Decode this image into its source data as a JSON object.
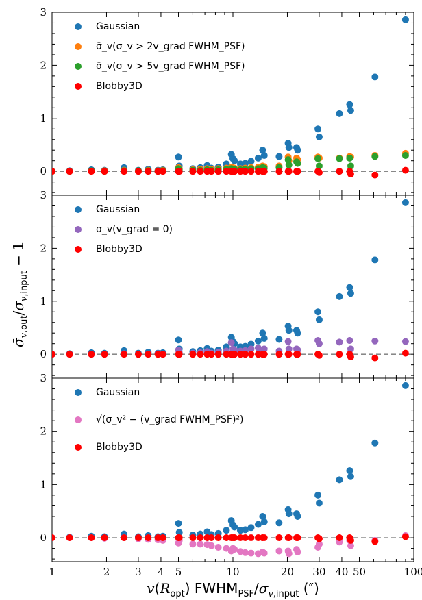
{
  "chart_data": {
    "type": "scatter",
    "xlabel": "v(R_opt) FWHM_PSF/σ_v,input (″)",
    "ylabel": "σ̄_v,out/σ_v,input − 1",
    "xscale": "log",
    "xlim": [
      1,
      100
    ],
    "ylim": [
      -0.45,
      3.0
    ],
    "x_ticks": [
      1,
      2,
      3,
      4,
      5,
      10,
      20,
      30,
      40,
      50,
      100
    ],
    "x_tick_labels": [
      "1",
      "2",
      "3",
      "4",
      "5",
      "10",
      "20",
      "30",
      "40",
      "50",
      "100"
    ],
    "y_ticks": [
      0,
      1,
      2,
      3
    ],
    "y_tick_labels": [
      "0",
      "1",
      "2",
      "3"
    ],
    "colors": {
      "gaussian": "#1f77b4",
      "orange": "#ff7f0e",
      "green": "#2ca02c",
      "purple": "#9467bd",
      "pink": "#e377c2",
      "blobby": "#ff0000",
      "zero_line": "#777777"
    },
    "x_points": [
      1.0,
      1.25,
      1.65,
      1.95,
      2.5,
      3.0,
      3.4,
      3.85,
      4.1,
      5.0,
      5.05,
      6.0,
      6.6,
      7.2,
      7.6,
      8.3,
      9.2,
      9.8,
      10.0,
      10.2,
      11.0,
      11.7,
      12.6,
      13.8,
      14.6,
      14.9,
      18.0,
      20.2,
      20.4,
      22.5,
      22.8,
      29.5,
      30.0,
      38.8,
      44.2,
      44.8,
      61.0,
      90.0
    ],
    "gaussian_y": [
      0.0,
      0.01,
      0.03,
      0.02,
      0.07,
      0.02,
      0.04,
      0.02,
      0.03,
      0.27,
      0.1,
      0.05,
      0.07,
      0.11,
      0.06,
      0.08,
      0.14,
      0.32,
      0.24,
      0.2,
      0.14,
      0.15,
      0.19,
      0.25,
      0.4,
      0.3,
      0.28,
      0.53,
      0.45,
      0.45,
      0.4,
      0.8,
      0.65,
      1.09,
      1.26,
      1.15,
      1.78,
      2.86
    ],
    "panels": [
      {
        "legend": [
          "Gaussian",
          "σ̄_v(σ_v > 2v_grad FWHM_PSF)",
          "σ̄_v(σ_v > 5v_grad FWHM_PSF)",
          "Blobby3D"
        ],
        "series": [
          {
            "name": "Gaussian",
            "color_key": "gaussian",
            "y_key": "gaussian_y"
          },
          {
            "name": "σ̄_v(σ_v > 2v_grad FWHM_PSF)",
            "color_key": "orange",
            "y": [
              0.0,
              0.0,
              0.01,
              0.01,
              0.02,
              0.01,
              0.02,
              0.01,
              0.02,
              0.07,
              0.05,
              0.03,
              0.04,
              0.05,
              0.04,
              0.05,
              0.06,
              0.08,
              0.07,
              0.06,
              0.05,
              0.06,
              0.07,
              0.08,
              0.1,
              0.09,
              0.1,
              0.27,
              0.2,
              0.25,
              0.22,
              0.27,
              0.25,
              0.25,
              0.28,
              0.27,
              0.3,
              0.34
            ]
          },
          {
            "name": "σ̄_v(σ_v > 5v_grad FWHM_PSF)",
            "color_key": "green",
            "y": [
              0.0,
              0.0,
              0.01,
              0.0,
              0.01,
              0.01,
              0.01,
              0.0,
              0.01,
              0.05,
              0.03,
              0.02,
              0.02,
              0.03,
              0.02,
              0.03,
              0.04,
              0.05,
              0.04,
              0.04,
              0.03,
              0.04,
              0.05,
              0.05,
              0.07,
              0.06,
              0.07,
              0.22,
              0.12,
              0.18,
              0.15,
              0.24,
              0.1,
              0.24,
              0.25,
              0.1,
              0.28,
              0.3
            ]
          },
          {
            "name": "Blobby3D",
            "color_key": "blobby",
            "y": [
              0.0,
              0.0,
              0.0,
              0.0,
              0.0,
              0.0,
              0.0,
              0.0,
              0.0,
              0.0,
              0.0,
              0.0,
              0.0,
              0.0,
              0.0,
              0.0,
              0.0,
              0.0,
              0.0,
              0.0,
              0.0,
              0.0,
              0.0,
              0.0,
              0.0,
              0.0,
              0.0,
              0.0,
              0.0,
              0.0,
              0.0,
              0.0,
              -0.02,
              0.0,
              0.0,
              -0.05,
              -0.07,
              0.02
            ]
          }
        ]
      },
      {
        "legend": [
          "Gaussian",
          "σ_v(v_grad = 0)",
          "Blobby3D"
        ],
        "series": [
          {
            "name": "Gaussian",
            "color_key": "gaussian",
            "y_key": "gaussian_y"
          },
          {
            "name": "σ_v(v_grad = 0)",
            "color_key": "purple",
            "y": [
              0.0,
              0.0,
              0.0,
              0.0,
              0.01,
              0.0,
              0.0,
              0.01,
              0.0,
              0.08,
              0.03,
              0.02,
              0.03,
              0.05,
              0.02,
              0.04,
              0.06,
              0.22,
              0.1,
              0.08,
              0.06,
              0.07,
              0.1,
              0.12,
              0.08,
              0.1,
              0.06,
              0.24,
              0.1,
              0.1,
              0.08,
              0.26,
              0.2,
              0.23,
              0.26,
              0.1,
              0.25,
              0.24
            ]
          },
          {
            "name": "Blobby3D",
            "color_key": "blobby",
            "y": [
              0.0,
              0.0,
              0.0,
              0.0,
              0.0,
              0.0,
              0.0,
              0.0,
              0.0,
              0.0,
              0.0,
              0.0,
              0.0,
              0.0,
              0.0,
              0.0,
              0.0,
              0.0,
              0.0,
              0.0,
              0.0,
              0.0,
              0.0,
              0.0,
              0.0,
              0.0,
              0.0,
              0.0,
              0.0,
              0.0,
              0.0,
              0.0,
              -0.02,
              0.0,
              0.0,
              -0.05,
              -0.07,
              0.02
            ]
          }
        ]
      },
      {
        "legend": [
          "Gaussian",
          "√(σ_v² − (v_grad FWHM_PSF)²)",
          "Blobby3D"
        ],
        "series": [
          {
            "name": "Gaussian",
            "color_key": "gaussian",
            "y_key": "gaussian_y"
          },
          {
            "name": "√(σ_v² − (v_grad FWHM_PSF)²)",
            "color_key": "pink",
            "y": [
              0.0,
              0.0,
              0.0,
              -0.01,
              0.0,
              -0.02,
              -0.03,
              -0.04,
              -0.05,
              -0.1,
              -0.05,
              -0.12,
              -0.12,
              -0.13,
              -0.15,
              -0.18,
              -0.2,
              -0.25,
              -0.2,
              -0.22,
              -0.26,
              -0.28,
              -0.29,
              -0.3,
              -0.27,
              -0.29,
              -0.25,
              -0.25,
              -0.3,
              -0.22,
              -0.27,
              -0.18,
              -0.12,
              -0.08,
              -0.05,
              -0.15,
              -0.05,
              0.04
            ]
          },
          {
            "name": "Blobby3D",
            "color_key": "blobby",
            "y": [
              0.0,
              0.0,
              0.0,
              0.0,
              0.0,
              0.0,
              0.0,
              0.0,
              0.0,
              0.0,
              0.0,
              0.0,
              0.0,
              0.0,
              0.0,
              0.0,
              0.0,
              0.0,
              0.0,
              0.0,
              0.0,
              0.0,
              0.0,
              0.0,
              0.0,
              0.0,
              0.0,
              0.0,
              0.0,
              0.0,
              0.0,
              0.0,
              -0.02,
              0.0,
              0.0,
              -0.05,
              -0.07,
              0.02
            ]
          }
        ]
      }
    ]
  }
}
